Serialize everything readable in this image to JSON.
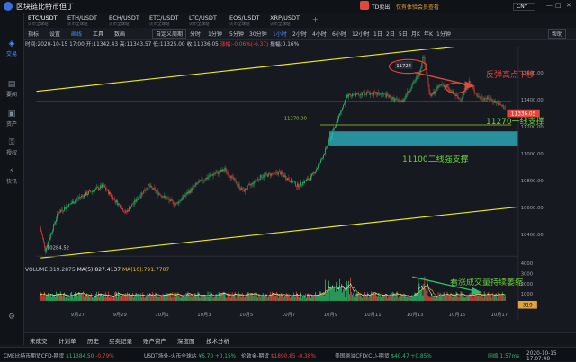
{
  "window": {
    "title": "区块链比特币但丁",
    "td_notice": "TD卖出",
    "notice_text": "仅有体验会员查看",
    "currency": "CNY",
    "controls": [
      "—",
      "□",
      "✕"
    ]
  },
  "sidebar": {
    "items": [
      {
        "label": "交易",
        "icon": "trade-icon"
      },
      {
        "label": "要闻",
        "icon": "news-icon"
      },
      {
        "label": "资产",
        "icon": "wallet-icon"
      },
      {
        "label": "授权",
        "icon": "key-icon"
      },
      {
        "label": "快讯",
        "icon": "flash-icon"
      }
    ]
  },
  "pair_tabs": [
    {
      "label": "BTC/USDT",
      "sub": "火币全球站"
    },
    {
      "label": "ETH/USDT",
      "sub": "火币全球站"
    },
    {
      "label": "BCH/USDT",
      "sub": "火币全球站"
    },
    {
      "label": "ETC/USDT",
      "sub": "火币全球站"
    },
    {
      "label": "LTC/USDT",
      "sub": "火币全球站"
    },
    {
      "label": "EOS/USDT",
      "sub": "火币全球站"
    },
    {
      "label": "XRP/USDT",
      "sub": "火币全球站"
    }
  ],
  "toolbar": {
    "left": [
      "指标",
      "设置",
      "画线",
      "工具",
      "数画"
    ],
    "period_select": "自定义周期",
    "periods": [
      "分时",
      "1分钟",
      "5分钟",
      "30分钟",
      "1小时",
      "2小时",
      "4小时",
      "6小时",
      "12小时",
      "1日",
      "2日",
      "5日",
      "月K",
      "年K",
      "1分钟"
    ],
    "active_period": "1小时",
    "help": "帮助"
  },
  "ohlc": {
    "time": "时间:2020-10-15 17:00",
    "open": "开:11342.43",
    "high": "高:11343.57",
    "low": "低:11325.00",
    "close": "收:11336.05",
    "change": "涨幅:-0.06%(-6.37)",
    "amplitude": "振幅:0.16%"
  },
  "annotations": {
    "high_label": "11724",
    "low_label": "10284.52",
    "support1_value": "11270.00",
    "current_price": "11336.05",
    "note_rebound": "反弹高点下移",
    "note_support1": "11270一线支撑",
    "note_support2": "11100二线强支撑",
    "note_volume": "看涨成交量持续萎缩"
  },
  "price_axis": [
    "11600.00",
    "11400.00",
    "11200.00",
    "11000.00",
    "10800.00",
    "10600.00",
    "10400.00"
  ],
  "volume": {
    "title": "VOLUME",
    "value": "319.2875",
    "ma5": "MA(5):827.4137",
    "ma10": "MA(10):791.7707",
    "axis": [
      "4000",
      "3000",
      "2000",
      "1000"
    ],
    "current": "319"
  },
  "x_axis": [
    "9月27",
    "9月29",
    "10月1",
    "10月3",
    "10月5",
    "10月7",
    "10月9",
    "10月11",
    "10月13",
    "10月15",
    "10月17"
  ],
  "bottom_tabs": [
    "未成交",
    "计划单",
    "历史",
    "买卖记录",
    "账户资产",
    "深度图",
    "技术分析"
  ],
  "ticker": [
    {
      "name": "CME比特币期货CFD-期货",
      "price": "$11384.50",
      "chg": "-0.79%"
    },
    {
      "name": "USDT场外-火币全球站",
      "price": "¥6.70",
      "chg": "+0.15%"
    },
    {
      "name": "伦敦金-期货",
      "price": "$1890.85",
      "chg": "-0.38%"
    },
    {
      "name": "美国原油CFD(CL)-期货",
      "price": "$40.47",
      "chg": "+0.85%"
    }
  ],
  "status": {
    "network": "网络:1.57ms",
    "datetime": "2020-10-15 17:07:48"
  },
  "chart_data": {
    "type": "candlestick",
    "period": "1小时",
    "series_summary": "BTC/USDT hourly candles from Sept 26 to Oct 15 2020",
    "y_range": [
      10250,
      11780
    ],
    "low_point": 10284.52,
    "high_point": 11724,
    "last": 11336.05,
    "support_line": 11270,
    "support_zone": [
      11080,
      11150
    ]
  }
}
